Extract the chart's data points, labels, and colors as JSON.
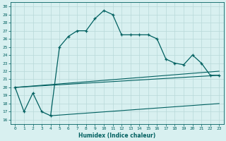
{
  "xlabel": "Humidex (Indice chaleur)",
  "bg_color": "#d8f0f0",
  "grid_color": "#b8d8d8",
  "line_color": "#006060",
  "xlim": [
    -0.5,
    23.5
  ],
  "ylim": [
    15.5,
    30.5
  ],
  "xticks": [
    0,
    1,
    2,
    3,
    4,
    5,
    6,
    7,
    8,
    9,
    10,
    11,
    12,
    13,
    14,
    15,
    16,
    17,
    18,
    19,
    20,
    21,
    22,
    23
  ],
  "yticks": [
    16,
    17,
    18,
    19,
    20,
    21,
    22,
    23,
    24,
    25,
    26,
    27,
    28,
    29,
    30
  ],
  "main_x": [
    0,
    1,
    2,
    3,
    4,
    5,
    6,
    7,
    8,
    9,
    10,
    11,
    12,
    13,
    14,
    15,
    16,
    17,
    18,
    19,
    20,
    21,
    22,
    23
  ],
  "main_y": [
    20,
    17,
    19.3,
    17,
    16.5,
    25,
    26.3,
    27,
    27,
    28.5,
    29.5,
    29,
    26.5,
    26.5,
    26.5,
    26.5,
    26,
    23.5,
    23,
    22.8,
    24,
    23,
    21.5,
    21.5
  ],
  "line2_x": [
    0,
    23
  ],
  "line2_y": [
    20.0,
    22.0
  ],
  "line3_x": [
    0,
    23
  ],
  "line3_y": [
    20.0,
    21.5
  ],
  "line4_x": [
    4,
    23
  ],
  "line4_y": [
    16.5,
    18.0
  ]
}
